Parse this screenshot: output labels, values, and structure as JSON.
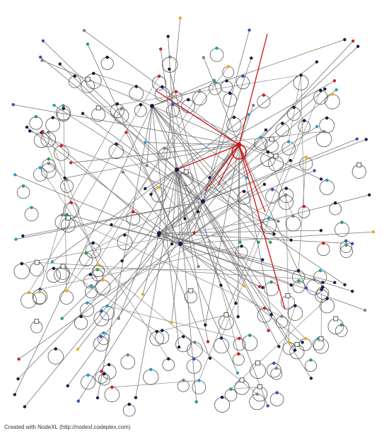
{
  "footer": {
    "credit": "Created with NodeXL (http://nodexl.codeplex.com)"
  }
}
